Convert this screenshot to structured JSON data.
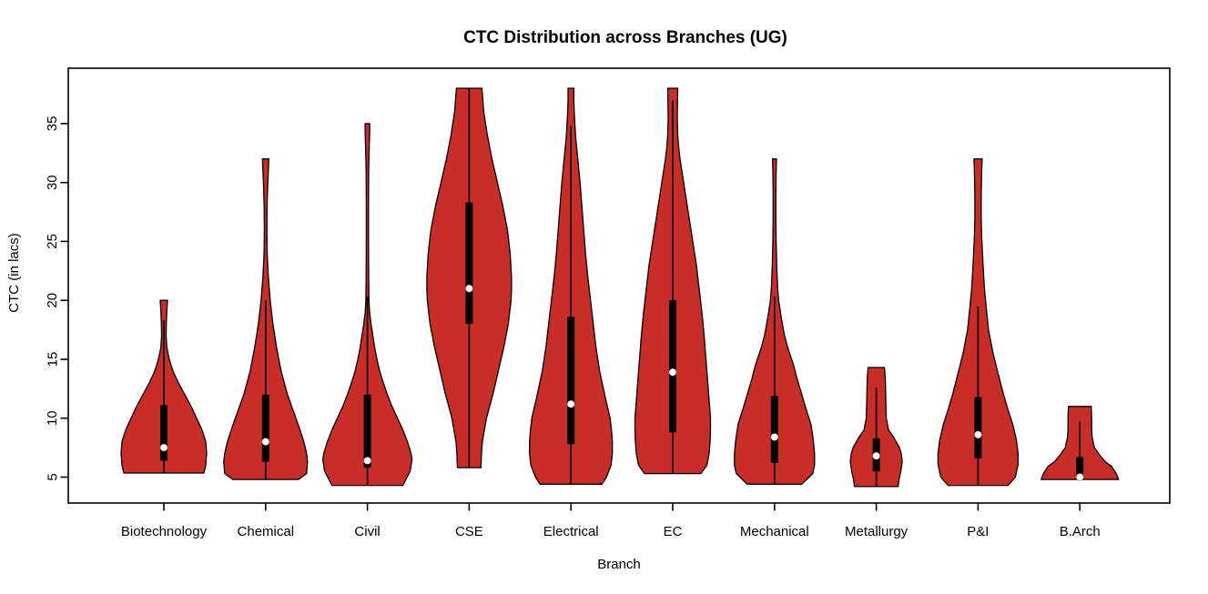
{
  "chart_data": {
    "type": "violin",
    "title": "CTC Distribution across Branches (UG)",
    "xlabel": "Branch",
    "ylabel": "CTC (in lacs)",
    "ylim": [
      2.8,
      39.7
    ],
    "yticks": [
      5,
      10,
      15,
      20,
      25,
      30,
      35
    ],
    "grid": false,
    "legend_position": "none",
    "colors": {
      "violin_fill": "#C82D28",
      "violin_outline": "#000000",
      "box": "#000000",
      "median_dot": "#FFFFFF",
      "axis": "#000000",
      "background": "#FFFFFF"
    },
    "categories": [
      "Biotechnology",
      "Chemical",
      "Civil",
      "CSE",
      "Electrical",
      "EC",
      "Mechanical",
      "Metallurgy",
      "P&I",
      "B.Arch"
    ],
    "violins": [
      {
        "branch": "Biotechnology",
        "min": 5.4,
        "max": 20,
        "q1": 6.4,
        "median": 7.5,
        "q3": 11.1,
        "whisker_low": 5.4,
        "whisker_high": 18.3,
        "profile": [
          [
            20,
            4
          ],
          [
            19,
            3.2
          ],
          [
            18,
            2.7
          ],
          [
            17,
            2.5
          ],
          [
            16,
            3.3
          ],
          [
            15,
            6
          ],
          [
            14,
            10
          ],
          [
            13,
            16
          ],
          [
            12,
            23
          ],
          [
            11,
            30
          ],
          [
            10,
            36
          ],
          [
            9,
            42
          ],
          [
            8,
            46
          ],
          [
            7,
            47
          ],
          [
            6,
            46
          ],
          [
            5.35,
            44
          ]
        ]
      },
      {
        "branch": "Chemical",
        "min": 4.8,
        "max": 32,
        "q1": 6.3,
        "median": 8.0,
        "q3": 12.0,
        "whisker_low": 4.8,
        "whisker_high": 20.0,
        "profile": [
          [
            32,
            3.5
          ],
          [
            31,
            3
          ],
          [
            30,
            2.4
          ],
          [
            28,
            1.6
          ],
          [
            26,
            1.4
          ],
          [
            24,
            1.7
          ],
          [
            22,
            3
          ],
          [
            20,
            5
          ],
          [
            18,
            8
          ],
          [
            16,
            12
          ],
          [
            14,
            17
          ],
          [
            12,
            24
          ],
          [
            10.5,
            31
          ],
          [
            9.4,
            36
          ],
          [
            8,
            42
          ],
          [
            7,
            45
          ],
          [
            6.3,
            46
          ],
          [
            5.3,
            45
          ],
          [
            4.8,
            36
          ]
        ]
      },
      {
        "branch": "Civil",
        "min": 4.3,
        "max": 35,
        "q1": 5.8,
        "median": 6.4,
        "q3": 12.0,
        "whisker_low": 4.3,
        "whisker_high": 20.3,
        "profile": [
          [
            35,
            2.5
          ],
          [
            34,
            2.4
          ],
          [
            33,
            2
          ],
          [
            31,
            1.4
          ],
          [
            28,
            1.2
          ],
          [
            25,
            1.2
          ],
          [
            22,
            1.4
          ],
          [
            20,
            1.7
          ],
          [
            19,
            2.4
          ],
          [
            18,
            4
          ],
          [
            17,
            6
          ],
          [
            16,
            8
          ],
          [
            15,
            10.5
          ],
          [
            14,
            13.5
          ],
          [
            13,
            17.5
          ],
          [
            12,
            22
          ],
          [
            11,
            27
          ],
          [
            10,
            33
          ],
          [
            9,
            39
          ],
          [
            8,
            44
          ],
          [
            7,
            48
          ],
          [
            6.5,
            49
          ],
          [
            5.5,
            47
          ],
          [
            4.3,
            39
          ]
        ]
      },
      {
        "branch": "CSE",
        "min": 5.8,
        "max": 38,
        "q1": 18.0,
        "median": 21.0,
        "q3": 28.3,
        "whisker_low": 5.8,
        "whisker_high": 38.0,
        "profile": [
          [
            38,
            14
          ],
          [
            36,
            16
          ],
          [
            34,
            20
          ],
          [
            32,
            25
          ],
          [
            30,
            31
          ],
          [
            28,
            37
          ],
          [
            26,
            42
          ],
          [
            24,
            45
          ],
          [
            22,
            46.5
          ],
          [
            21,
            46.5
          ],
          [
            20,
            46
          ],
          [
            18,
            43
          ],
          [
            16,
            38
          ],
          [
            14,
            32
          ],
          [
            12,
            26
          ],
          [
            10,
            19
          ],
          [
            8,
            14.5
          ],
          [
            7,
            13.5
          ],
          [
            6,
            13
          ],
          [
            5.8,
            13
          ]
        ]
      },
      {
        "branch": "Electrical",
        "min": 4.4,
        "max": 38,
        "q1": 7.8,
        "median": 11.2,
        "q3": 18.6,
        "whisker_low": 4.4,
        "whisker_high": 34.8,
        "profile": [
          [
            38,
            3.2
          ],
          [
            37,
            3.2
          ],
          [
            36,
            3.6
          ],
          [
            34,
            5
          ],
          [
            32,
            7.5
          ],
          [
            30,
            10
          ],
          [
            28,
            12
          ],
          [
            26,
            14
          ],
          [
            24,
            16
          ],
          [
            22,
            18.5
          ],
          [
            20,
            21.5
          ],
          [
            18,
            24.5
          ],
          [
            16,
            27.5
          ],
          [
            14,
            31.5
          ],
          [
            12,
            37
          ],
          [
            11,
            40
          ],
          [
            10,
            43
          ],
          [
            9,
            44.5
          ],
          [
            8,
            45.5
          ],
          [
            7,
            45.5
          ],
          [
            6,
            44
          ],
          [
            5,
            39
          ],
          [
            4.4,
            34
          ]
        ]
      },
      {
        "branch": "EC",
        "min": 5.3,
        "max": 38,
        "q1": 8.8,
        "median": 13.9,
        "q3": 20.0,
        "whisker_low": 5.3,
        "whisker_high": 37.0,
        "profile": [
          [
            38,
            5.5
          ],
          [
            37,
            5.3
          ],
          [
            35.5,
            5
          ],
          [
            34,
            5.5
          ],
          [
            33,
            6.5
          ],
          [
            32,
            8
          ],
          [
            31,
            10
          ],
          [
            29,
            14
          ],
          [
            27,
            18
          ],
          [
            25,
            22
          ],
          [
            23,
            26
          ],
          [
            21,
            29
          ],
          [
            19,
            32
          ],
          [
            17,
            34.5
          ],
          [
            15,
            36.5
          ],
          [
            13,
            38.5
          ],
          [
            11,
            40.5
          ],
          [
            10,
            41.5
          ],
          [
            9,
            41.5
          ],
          [
            8,
            41
          ],
          [
            7,
            40
          ],
          [
            6,
            37.5
          ],
          [
            5.3,
            31
          ]
        ]
      },
      {
        "branch": "Mechanical",
        "min": 4.4,
        "max": 32,
        "q1": 6.2,
        "median": 8.4,
        "q3": 11.9,
        "whisker_low": 4.4,
        "whisker_high": 20.3,
        "profile": [
          [
            32,
            2.2
          ],
          [
            31,
            1.8
          ],
          [
            29,
            1.5
          ],
          [
            27,
            1.5
          ],
          [
            25,
            1.8
          ],
          [
            23,
            2.4
          ],
          [
            21,
            3.5
          ],
          [
            20,
            4.5
          ],
          [
            18.5,
            7.5
          ],
          [
            17,
            11
          ],
          [
            16,
            14.5
          ],
          [
            14.5,
            21
          ],
          [
            13.3,
            25
          ],
          [
            12,
            30
          ],
          [
            10.7,
            35
          ],
          [
            9.5,
            40
          ],
          [
            8.2,
            42.5
          ],
          [
            7,
            44
          ],
          [
            6,
            44
          ],
          [
            5.3,
            42
          ],
          [
            4.4,
            30
          ]
        ]
      },
      {
        "branch": "Metallurgy",
        "min": 4.2,
        "max": 14.3,
        "q1": 5.5,
        "median": 6.8,
        "q3": 8.3,
        "whisker_low": 4.2,
        "whisker_high": 12.6,
        "profile": [
          [
            14.3,
            9
          ],
          [
            13.5,
            9.8
          ],
          [
            12.5,
            10.2
          ],
          [
            11,
            10.6
          ],
          [
            10,
            11
          ],
          [
            9,
            13.5
          ],
          [
            8.4,
            19
          ],
          [
            7.5,
            25.5
          ],
          [
            7,
            27.5
          ],
          [
            6.3,
            28.5
          ],
          [
            5.5,
            27
          ],
          [
            4.8,
            25
          ],
          [
            4.2,
            24
          ]
        ]
      },
      {
        "branch": "P&I",
        "min": 4.3,
        "max": 32,
        "q1": 6.6,
        "median": 8.6,
        "q3": 11.8,
        "whisker_low": 4.3,
        "whisker_high": 19.5,
        "profile": [
          [
            32,
            4.5
          ],
          [
            31,
            4
          ],
          [
            29,
            3.5
          ],
          [
            27,
            3.5
          ],
          [
            25.4,
            4
          ],
          [
            23,
            5.5
          ],
          [
            21,
            7
          ],
          [
            19.4,
            9
          ],
          [
            17.5,
            11.5
          ],
          [
            15.5,
            16.5
          ],
          [
            13.8,
            22
          ],
          [
            12,
            28
          ],
          [
            10.7,
            33
          ],
          [
            9.5,
            38
          ],
          [
            8.2,
            42
          ],
          [
            7,
            44
          ],
          [
            6.1,
            44
          ],
          [
            5,
            41
          ],
          [
            4.3,
            33
          ]
        ]
      },
      {
        "branch": "B.Arch",
        "min": 4.8,
        "max": 11.0,
        "q1": 4.9,
        "median": 5.0,
        "q3": 6.7,
        "whisker_low": 4.8,
        "whisker_high": 9.7,
        "profile": [
          [
            11,
            12.5
          ],
          [
            10,
            13
          ],
          [
            9,
            13
          ],
          [
            8.4,
            13.5
          ],
          [
            7.5,
            16
          ],
          [
            6.9,
            21.5
          ],
          [
            6.3,
            28
          ],
          [
            5.9,
            35
          ],
          [
            5.3,
            40
          ],
          [
            4.8,
            42.5
          ]
        ]
      }
    ]
  }
}
